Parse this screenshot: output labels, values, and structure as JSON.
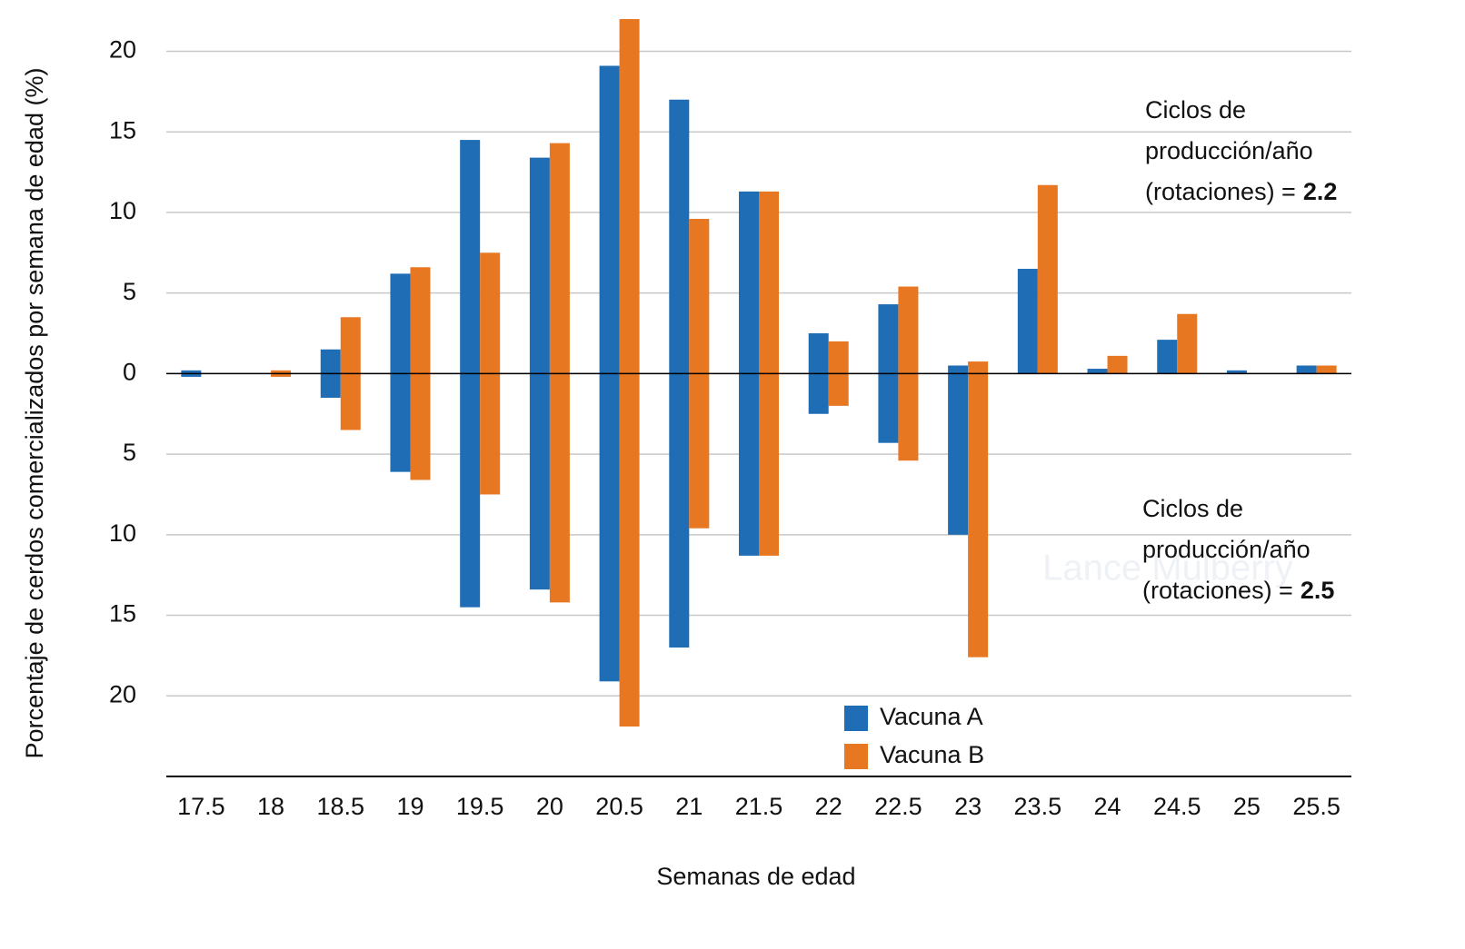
{
  "chart_data": {
    "type": "bar",
    "x_label": "Semanas de edad",
    "y_label": "Porcentaje de cerdos comercializados por semana de edad (%)",
    "categories": [
      "17.5",
      "18",
      "18.5",
      "19",
      "19.5",
      "20",
      "20.5",
      "21",
      "21.5",
      "22",
      "22.5",
      "23",
      "23.5",
      "24",
      "24.5",
      "25",
      "25.5"
    ],
    "series": [
      {
        "name": "Vacuna A",
        "color": "#1f6db5",
        "values": [
          0.2,
          0,
          1.5,
          6.2,
          14.5,
          13.4,
          19.1,
          17.0,
          11.3,
          2.5,
          4.3,
          0.5,
          6.5,
          0.3,
          2.1,
          0.2,
          0.5
        ],
        "lower": [
          -0.2,
          0,
          -1.5,
          -6.1,
          -14.5,
          -13.4,
          -19.1,
          -17.0,
          -11.3,
          -2.5,
          -4.3,
          -10.0,
          0,
          0,
          0,
          0,
          0
        ]
      },
      {
        "name": "Vacuna B",
        "color": "#e87722",
        "values": [
          0,
          0.2,
          3.5,
          6.6,
          7.5,
          14.3,
          22.0,
          9.6,
          11.3,
          2.0,
          5.4,
          0.75,
          11.7,
          1.1,
          3.7,
          0,
          0.5
        ],
        "lower": [
          0,
          -0.2,
          -3.5,
          -6.6,
          -7.5,
          -14.2,
          -21.9,
          -9.6,
          -11.3,
          -2.0,
          -5.4,
          -17.6,
          0,
          0,
          0,
          0,
          0
        ]
      }
    ],
    "ylim": [
      -25,
      22
    ],
    "yticks": [
      20,
      15,
      10,
      5,
      0,
      {
        "value": -5,
        "label": "5"
      },
      {
        "value": -10,
        "label": "10"
      },
      {
        "value": -15,
        "label": "15"
      },
      {
        "value": -20,
        "label": "20"
      }
    ],
    "grid": true,
    "annotations": [
      {
        "lines": [
          "Ciclos de",
          "producción/año",
          "(rotaciones) ="
        ],
        "value": 2.2
      },
      {
        "lines": [
          "Ciclos de",
          "producción/año",
          "(rotaciones) ="
        ],
        "value": 2.5
      }
    ],
    "watermark": "Lance Mulberry"
  }
}
